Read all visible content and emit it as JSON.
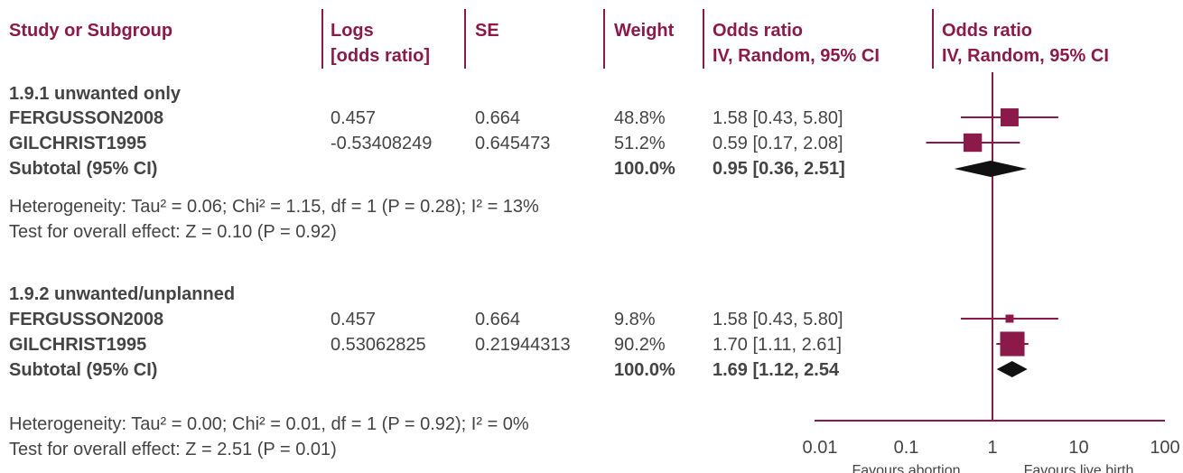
{
  "headers": {
    "study": "Study or Subgroup",
    "logs_line1": "Logs",
    "logs_line2": "[odds ratio]",
    "se": "SE",
    "weight": "Weight",
    "or_line1": "Odds ratio",
    "or_line2": "IV, Random, 95% CI",
    "plot_line1": "Odds ratio",
    "plot_line2": "IV, Random, 95% CI"
  },
  "groups": [
    {
      "title": "1.9.1 unwanted only",
      "rows": [
        {
          "study": "FERGUSSON2008",
          "logs": "0.457",
          "se": "0.664",
          "weight": "48.8%",
          "ci": "1.58 [0.43, 5.80]"
        },
        {
          "study": "GILCHRIST1995",
          "logs": "-0.53408249",
          "se": "0.645473",
          "weight": "51.2%",
          "ci": "0.59 [0.17, 2.08]"
        }
      ],
      "subtotal": {
        "label": "Subtotal (95% CI)",
        "weight": "100.0%",
        "ci": "0.95 [0.36, 2.51]"
      },
      "heterogeneity": "Heterogeneity: Tau² = 0.06; Chi² = 1.15, df = 1 (P = 0.28); I² = 13%",
      "overall": "Test for overall effect: Z = 0.10 (P = 0.92)"
    },
    {
      "title": "1.9.2 unwanted/unplanned",
      "rows": [
        {
          "study": "FERGUSSON2008",
          "logs": "0.457",
          "se": "0.664",
          "weight": "9.8%",
          "ci": "1.58 [0.43, 5.80]"
        },
        {
          "study": "GILCHRIST1995",
          "logs": "0.53062825",
          "se": "0.21944313",
          "weight": "90.2%",
          "ci": "1.70 [1.11, 2.61]"
        }
      ],
      "subtotal": {
        "label": "Subtotal (95% CI)",
        "weight": "100.0%",
        "ci": "1.69 [1.12, 2.54"
      },
      "heterogeneity": "Heterogeneity: Tau² = 0.00; Chi² = 0.01, df = 1 (P = 0.92); I² = 0%",
      "overall": "Test for overall effect: Z = 2.51 (P = 0.01)"
    }
  ],
  "chart_data": {
    "type": "scatter",
    "scale": "log",
    "xlim": [
      0.01,
      100
    ],
    "ticks": [
      "0.01",
      "0.1",
      "1",
      "10",
      "100"
    ],
    "tick_values": [
      0.01,
      0.1,
      1,
      10,
      100
    ],
    "null_line": 1,
    "favours_left": "Favours abortion",
    "favours_right": "Favours live birth",
    "studies": [
      {
        "group": 0,
        "or": 1.58,
        "lo": 0.43,
        "hi": 5.8,
        "weight": 48.8
      },
      {
        "group": 0,
        "or": 0.59,
        "lo": 0.17,
        "hi": 2.08,
        "weight": 51.2
      },
      {
        "group": 1,
        "or": 1.58,
        "lo": 0.43,
        "hi": 5.8,
        "weight": 9.8
      },
      {
        "group": 1,
        "or": 1.7,
        "lo": 1.11,
        "hi": 2.61,
        "weight": 90.2
      }
    ],
    "subtotals": [
      {
        "group": 0,
        "or": 0.95,
        "lo": 0.36,
        "hi": 2.51
      },
      {
        "group": 1,
        "or": 1.69,
        "lo": 1.12,
        "hi": 2.54
      }
    ],
    "colors": {
      "accent": "#8b1a4a",
      "diamond": "#111111",
      "text": "#444444"
    }
  }
}
